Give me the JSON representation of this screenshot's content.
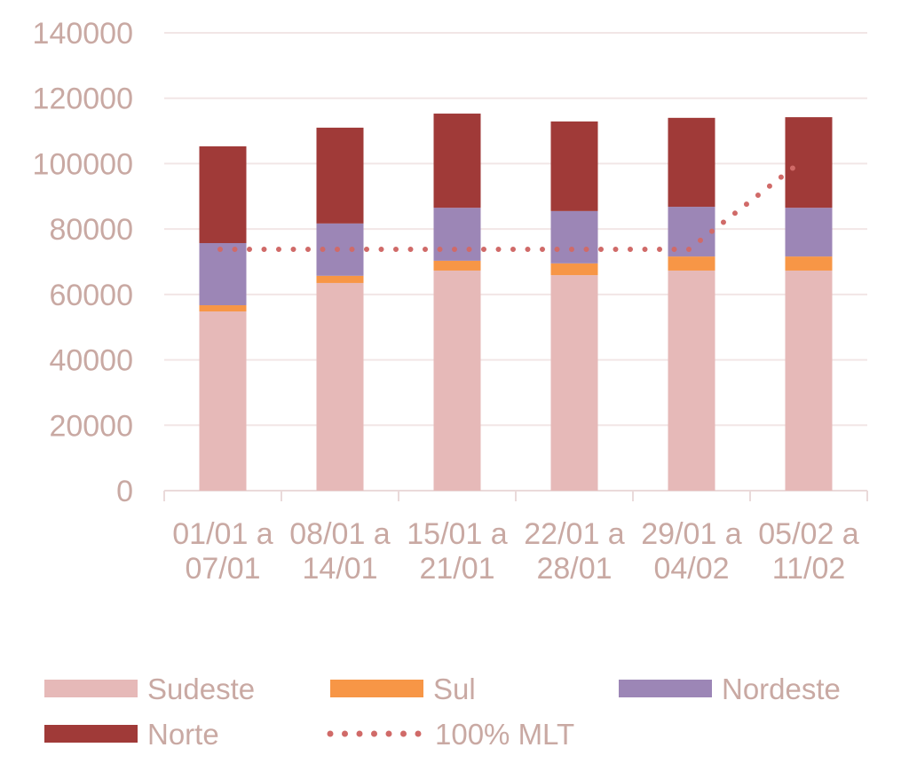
{
  "chart_data": {
    "type": "bar",
    "stacked": true,
    "title": "",
    "xlabel": "",
    "ylabel": "",
    "ylim": [
      0,
      140000
    ],
    "yticks": [
      "0",
      "20000",
      "40000",
      "60000",
      "80000",
      "100000",
      "120000",
      "140000"
    ],
    "grid": true,
    "legend_position": "bottom",
    "categories": [
      [
        "01/01 a",
        "07/01"
      ],
      [
        "08/01 a",
        "14/01"
      ],
      [
        "15/01 a",
        "21/01"
      ],
      [
        "22/01 a",
        "28/01"
      ],
      [
        "29/01 a",
        "04/02"
      ],
      [
        "05/02 a",
        "11/02"
      ]
    ],
    "series": [
      {
        "name": "Sudeste",
        "color": "#E6B9B8",
        "values": [
          54800,
          63500,
          67300,
          65900,
          67300,
          67300
        ]
      },
      {
        "name": "Sul",
        "color": "#F79646",
        "values": [
          1900,
          2200,
          3000,
          3600,
          4300,
          4300
        ]
      },
      {
        "name": "Nordeste",
        "color": "#9C86B6",
        "values": [
          19000,
          16000,
          16200,
          16000,
          15200,
          14900
        ]
      },
      {
        "name": "Norte",
        "color": "#A03A38",
        "values": [
          29600,
          29300,
          28800,
          27400,
          27200,
          27700
        ]
      }
    ],
    "line": {
      "name": "100% MLT",
      "color": "#D06A68",
      "style": "dotted",
      "values": [
        73800,
        73800,
        73800,
        73800,
        73800,
        101200
      ]
    }
  }
}
